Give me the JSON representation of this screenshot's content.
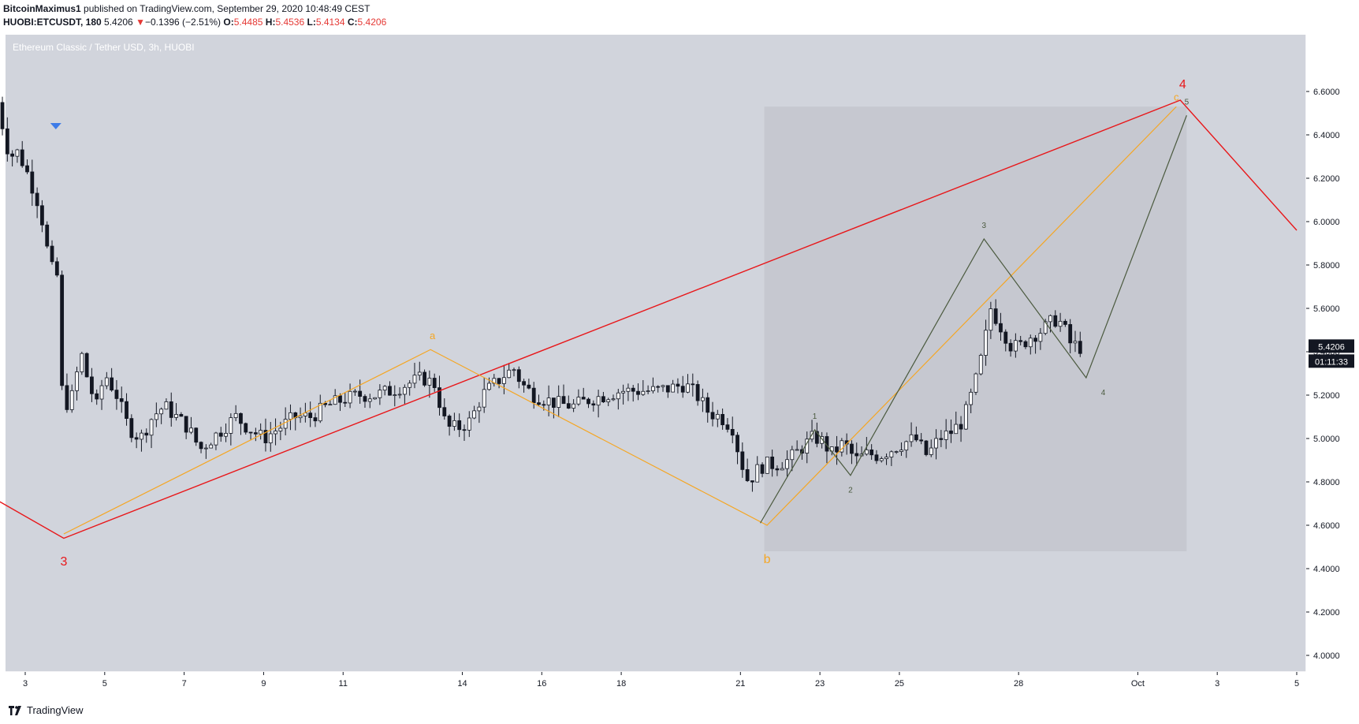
{
  "header": {
    "author": "BitcoinMaximus1",
    "published_text": "published on TradingView.com, September 29, 2020 10:48:49 CEST",
    "symbol": "HUOBI:ETCUSDT, 180",
    "last_price": "5.4206",
    "change_arrow": "▼",
    "change": "−0.1396 (−2.51%)",
    "o_label": "O:",
    "o_value": "5.4485",
    "h_label": "H:",
    "h_value": "5.4536",
    "l_label": "L:",
    "l_value": "5.4134",
    "c_label": "C:",
    "c_value": "5.4206"
  },
  "footer": {
    "brand": "TradingView"
  },
  "colors": {
    "background": "#d1d4dc",
    "box": "#c6c8d0",
    "red": "#e8171a",
    "orange": "#f5a623",
    "green": "#4b5a3f",
    "candle_up": "#ffffff",
    "candle_down": "#131722",
    "marker": "#3d7be8"
  },
  "chart_data": {
    "type": "candlestick",
    "title": "Ethereum Classic / Tether USD, 3h, HUOBI",
    "y_unit": "USDT",
    "ylim": [
      3.87,
      6.87
    ],
    "y_ticks": [
      "4.0000",
      "4.2000",
      "4.4000",
      "4.6000",
      "4.8000",
      "5.0000",
      "5.2000",
      "5.4000",
      "5.6000",
      "5.8000",
      "6.0000",
      "6.2000",
      "6.4000",
      "6.6000"
    ],
    "x_ticks": [
      {
        "label": "3",
        "day": 3
      },
      {
        "label": "5",
        "day": 5
      },
      {
        "label": "7",
        "day": 7
      },
      {
        "label": "9",
        "day": 9
      },
      {
        "label": "11",
        "day": 11
      },
      {
        "label": "14",
        "day": 14
      },
      {
        "label": "16",
        "day": 16
      },
      {
        "label": "18",
        "day": 18
      },
      {
        "label": "21",
        "day": 21
      },
      {
        "label": "23",
        "day": 23
      },
      {
        "label": "25",
        "day": 25
      },
      {
        "label": "28",
        "day": 28
      },
      {
        "label": "Oct",
        "day": 31
      },
      {
        "label": "3",
        "day": 33
      },
      {
        "label": "5",
        "day": 35
      }
    ],
    "price_label": "5.4206",
    "countdown_label": "01:11:33",
    "close_path": [
      [
        2.3,
        6.55
      ],
      [
        2.6,
        6.3
      ],
      [
        2.8,
        6.32
      ],
      [
        3.0,
        6.25
      ],
      [
        3.3,
        6.1
      ],
      [
        3.5,
        5.95
      ],
      [
        3.6,
        5.8
      ],
      [
        3.8,
        5.75
      ],
      [
        3.9,
        5.25
      ],
      [
        4.0,
        5.15
      ],
      [
        4.2,
        5.2
      ],
      [
        4.4,
        5.4
      ],
      [
        4.6,
        5.25
      ],
      [
        4.8,
        5.15
      ],
      [
        5.0,
        5.3
      ],
      [
        5.3,
        5.2
      ],
      [
        5.6,
        5.05
      ],
      [
        5.9,
        5.0
      ],
      [
        6.2,
        5.1
      ],
      [
        6.5,
        5.15
      ],
      [
        6.8,
        5.1
      ],
      [
        7.1,
        5.05
      ],
      [
        7.4,
        4.95
      ],
      [
        7.7,
        5.0
      ],
      [
        8.0,
        5.05
      ],
      [
        8.3,
        5.1
      ],
      [
        8.6,
        5.05
      ],
      [
        9.0,
        5.0
      ],
      [
        9.4,
        5.05
      ],
      [
        9.8,
        5.1
      ],
      [
        10.2,
        5.1
      ],
      [
        10.6,
        5.15
      ],
      [
        11.0,
        5.18
      ],
      [
        11.4,
        5.2
      ],
      [
        11.8,
        5.2
      ],
      [
        12.2,
        5.22
      ],
      [
        12.6,
        5.25
      ],
      [
        13.0,
        5.28
      ],
      [
        13.3,
        5.25
      ],
      [
        13.6,
        5.05
      ],
      [
        13.9,
        5.05
      ],
      [
        14.2,
        5.08
      ],
      [
        14.5,
        5.2
      ],
      [
        14.8,
        5.25
      ],
      [
        15.1,
        5.3
      ],
      [
        15.3,
        5.32
      ],
      [
        15.5,
        5.25
      ],
      [
        15.8,
        5.2
      ],
      [
        16.1,
        5.18
      ],
      [
        16.4,
        5.16
      ],
      [
        16.8,
        5.15
      ],
      [
        17.2,
        5.18
      ],
      [
        17.6,
        5.2
      ],
      [
        18.0,
        5.22
      ],
      [
        18.4,
        5.22
      ],
      [
        18.8,
        5.22
      ],
      [
        19.2,
        5.23
      ],
      [
        19.6,
        5.25
      ],
      [
        19.9,
        5.2
      ],
      [
        20.2,
        5.12
      ],
      [
        20.5,
        5.1
      ],
      [
        20.8,
        5.05
      ],
      [
        21.0,
        4.9
      ],
      [
        21.2,
        4.8
      ],
      [
        21.4,
        4.85
      ],
      [
        21.6,
        4.88
      ],
      [
        21.9,
        4.88
      ],
      [
        22.2,
        4.9
      ],
      [
        22.5,
        4.95
      ],
      [
        22.8,
        5.0
      ],
      [
        23.0,
        5.0
      ],
      [
        23.3,
        4.93
      ],
      [
        23.6,
        4.98
      ],
      [
        23.9,
        4.9
      ],
      [
        24.2,
        4.93
      ],
      [
        24.5,
        4.92
      ],
      [
        24.8,
        4.95
      ],
      [
        25.1,
        4.98
      ],
      [
        25.4,
        5.0
      ],
      [
        25.7,
        4.92
      ],
      [
        26.0,
        5.0
      ],
      [
        26.3,
        5.03
      ],
      [
        26.6,
        5.08
      ],
      [
        26.9,
        5.25
      ],
      [
        27.1,
        5.4
      ],
      [
        27.3,
        5.6
      ],
      [
        27.45,
        5.55
      ],
      [
        27.6,
        5.5
      ],
      [
        27.8,
        5.43
      ],
      [
        28.0,
        5.42
      ],
      [
        28.3,
        5.47
      ],
      [
        28.6,
        5.5
      ],
      [
        28.9,
        5.55
      ],
      [
        29.1,
        5.53
      ],
      [
        29.3,
        5.44
      ],
      [
        29.55,
        5.42
      ]
    ],
    "annotations": [
      {
        "text": "3",
        "color": "red",
        "size": "large",
        "day": 3.97,
        "price": 4.43
      },
      {
        "text": "4",
        "color": "red",
        "size": "large",
        "day": 32.13,
        "price": 6.63
      },
      {
        "text": "a",
        "color": "orange",
        "size": "medium",
        "day": 13.25,
        "price": 5.47
      },
      {
        "text": "b",
        "color": "orange",
        "size": "large",
        "day": 21.67,
        "price": 4.44
      },
      {
        "text": "c",
        "color": "orange",
        "size": "medium",
        "day": 31.97,
        "price": 6.57
      },
      {
        "text": "1",
        "color": "green",
        "size": "small",
        "day": 22.87,
        "price": 5.1
      },
      {
        "text": "2",
        "color": "green",
        "size": "small",
        "day": 23.77,
        "price": 4.76
      },
      {
        "text": "3",
        "color": "green",
        "size": "small",
        "day": 27.13,
        "price": 5.98
      },
      {
        "text": "4",
        "color": "green",
        "size": "small",
        "day": 30.13,
        "price": 5.21
      },
      {
        "text": "5",
        "color": "green",
        "size": "small",
        "day": 32.23,
        "price": 6.55
      }
    ],
    "wave_lines": [
      {
        "color": "red",
        "points": [
          [
            1.2,
            4.83
          ],
          [
            3.97,
            4.54
          ],
          [
            32.07,
            6.56
          ],
          [
            35.0,
            5.96
          ]
        ]
      },
      {
        "color": "orange",
        "points": [
          [
            3.97,
            4.56
          ],
          [
            13.2,
            5.41
          ],
          [
            21.67,
            4.6
          ],
          [
            31.97,
            6.53
          ]
        ]
      },
      {
        "color": "green",
        "points": [
          [
            21.5,
            4.61
          ],
          [
            22.87,
            5.04
          ],
          [
            23.77,
            4.83
          ],
          [
            27.13,
            5.92
          ],
          [
            29.7,
            5.28
          ],
          [
            32.23,
            6.49
          ]
        ]
      }
    ],
    "highlight_box": {
      "from_day": 21.6,
      "to_day": 32.23,
      "from_price": 4.48,
      "to_price": 6.53
    },
    "marker": {
      "shape": "triangle-down",
      "day": 3.77,
      "price": 6.44
    }
  }
}
